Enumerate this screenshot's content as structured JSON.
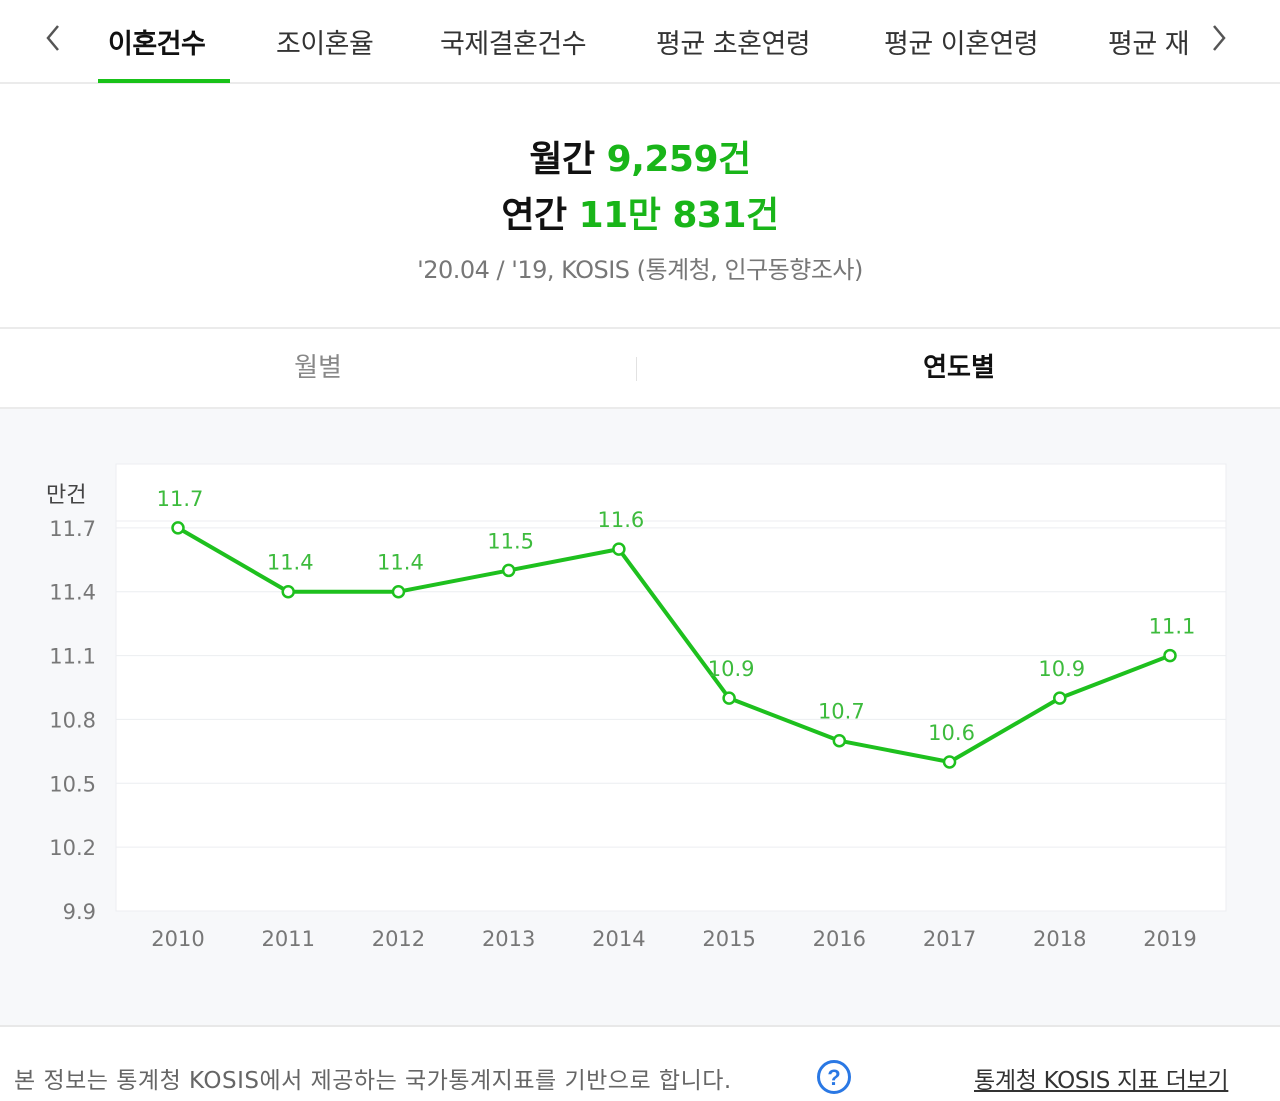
{
  "tabs": {
    "items": [
      {
        "label": "이혼건수"
      },
      {
        "label": "조이혼율"
      },
      {
        "label": "국제결혼건수"
      },
      {
        "label": "평균 초혼연령"
      },
      {
        "label": "평균 이혼연령"
      },
      {
        "label": "평균 재"
      }
    ],
    "active_index": 0,
    "prev_icon": "chevron-left-icon",
    "next_icon": "chevron-right-icon"
  },
  "summary": {
    "monthly_label": "월간",
    "monthly_value": "9,259건",
    "annual_label": "연간",
    "annual_value": "11만 831건",
    "source": "'20.04 / '19, KOSIS (통계청, 인구동향조사)"
  },
  "period_toggle": {
    "monthly_label": "월별",
    "yearly_label": "연도별",
    "selected": "연도별"
  },
  "chart_data": {
    "type": "line",
    "unit_label": "만건",
    "categories": [
      "2010",
      "2011",
      "2012",
      "2013",
      "2014",
      "2015",
      "2016",
      "2017",
      "2018",
      "2019"
    ],
    "series": [
      {
        "values": [
          11.7,
          11.4,
          11.4,
          11.5,
          11.6,
          10.9,
          10.7,
          10.6,
          10.9,
          11.1
        ]
      }
    ],
    "data_labels": [
      "11.7",
      "11.4",
      "11.4",
      "11.5",
      "11.6",
      "10.9",
      "10.7",
      "10.6",
      "10.9",
      "11.1"
    ],
    "y_ticks": [
      "11.7",
      "11.4",
      "11.1",
      "10.8",
      "10.5",
      "10.2",
      "9.9"
    ],
    "ylim": [
      9.9,
      12.0
    ],
    "grid": true,
    "legend": "none",
    "line_color": "#1ec01e",
    "label_color": "#3dbb3d"
  },
  "footer": {
    "note": "본 정보는 통계청 KOSIS에서 제공하는 국가통계지표를 기반으로 합니다.",
    "help_icon": "question-circle-icon",
    "link_label": "통계청 KOSIS 지표 더보기"
  },
  "colors": {
    "accent": "#19c219",
    "value_green": "#19b519"
  }
}
